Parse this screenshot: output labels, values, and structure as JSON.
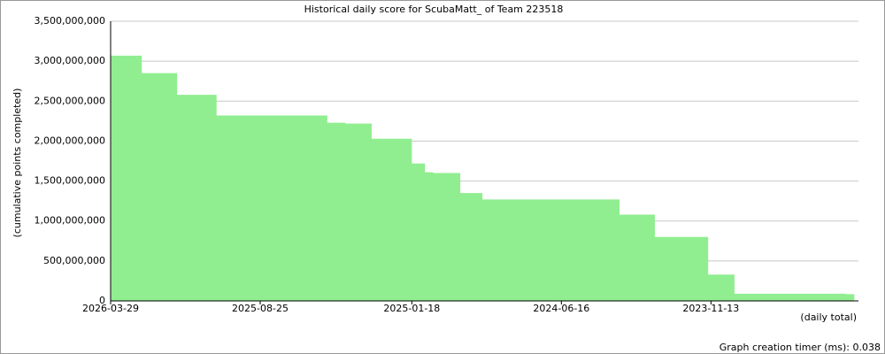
{
  "chart_data": {
    "type": "area",
    "title": "Historical daily score for ScubaMatt_ of Team 223518",
    "y_label": "(cumulative points completed)",
    "x_label": "(daily total)",
    "footer": "Graph creation timer (ms): 0.038",
    "color": "#90ee90",
    "x": [
      "2026-03-29",
      "2026-02-12",
      "2025-12-23",
      "2025-10-27",
      "2025-06-08",
      "2025-05-20",
      "2025-04-24",
      "2025-03-17",
      "2025-01-18",
      "2024-12-30",
      "2024-12-18",
      "2024-11-09",
      "2024-10-08",
      "2024-05-08",
      "2024-03-24",
      "2024-02-02",
      "2023-11-17",
      "2023-10-10",
      "2023-05-03",
      "2023-04-20"
    ],
    "values": [
      3070000000,
      2850000000,
      2580000000,
      2320000000,
      2320000000,
      2230000000,
      2220000000,
      2030000000,
      1720000000,
      1610000000,
      1600000000,
      1350000000,
      1270000000,
      1270000000,
      1080000000,
      800000000,
      330000000,
      90000000,
      85000000,
      10000000
    ],
    "xlim": [
      "2026-03-29",
      "2023-04-14"
    ],
    "xticks": [
      "2026-03-29",
      "2025-08-25",
      "2025-01-18",
      "2024-06-16",
      "2023-11-13"
    ],
    "ylim": [
      0,
      3500000000
    ],
    "yticks": [
      0,
      {
        "value": 500000000,
        "label": "500,000,000"
      },
      {
        "value": 1000000000,
        "label": "1,000,000,000"
      },
      {
        "value": 1500000000,
        "label": "1,500,000,000"
      },
      {
        "value": 2000000000,
        "label": "2,000,000,000"
      },
      {
        "value": 2500000000,
        "label": "2,500,000,000"
      },
      {
        "value": 3000000000,
        "label": "3,000,000,000"
      },
      {
        "value": 3500000000,
        "label": "3,500,000,000"
      }
    ],
    "grid": true
  }
}
